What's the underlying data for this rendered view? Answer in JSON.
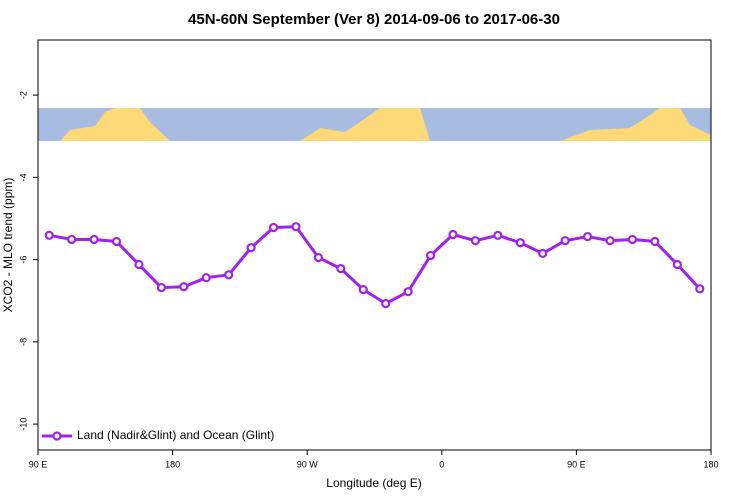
{
  "chart_data": {
    "type": "line",
    "title": "45N-60N September (Ver 8)   2014-09-06 to 2017-06-30",
    "x_label": "Longitude (deg E)",
    "y_label": "XCO2 - MLO trend (ppm)",
    "x": [
      97.5,
      112.5,
      127.5,
      142.5,
      157.5,
      172.5,
      187.5,
      202.5,
      217.5,
      232.5,
      247.5,
      262.5,
      277.5,
      292.5,
      307.5,
      322.5,
      337.5,
      352.5,
      367.5,
      382.5,
      397.5,
      412.5,
      427.5,
      442.5,
      457.5,
      472.5,
      487.5,
      502.5,
      517.5,
      532.5
    ],
    "series": [
      {
        "name": "Land (Nadir&Glint) and Ocean (Glint)",
        "color": "#a020f0",
        "values": [
          -5.41,
          -5.51,
          -5.51,
          -5.56,
          -6.12,
          -6.68,
          -6.66,
          -6.44,
          -6.37,
          -5.71,
          -5.22,
          -5.2,
          -5.95,
          -6.22,
          -6.73,
          -7.07,
          -6.78,
          -5.9,
          -5.39,
          -5.54,
          -5.41,
          -5.59,
          -5.85,
          -5.54,
          -5.44,
          -5.54,
          -5.51,
          -5.56,
          -6.12,
          -6.71
        ]
      }
    ],
    "xlim": [
      90,
      540
    ],
    "xticks": [
      {
        "value": 90,
        "label": "90 E"
      },
      {
        "value": 180,
        "label": "180"
      },
      {
        "value": 270,
        "label": "90 W"
      },
      {
        "value": 360,
        "label": "0"
      },
      {
        "value": 450,
        "label": "90 E"
      },
      {
        "value": 540,
        "label": "180"
      }
    ],
    "ylim": [
      -10.63,
      -0.66
    ],
    "yticks": [
      -2,
      -4,
      -6,
      -8,
      -10
    ],
    "legend_position": "bottom-left"
  }
}
